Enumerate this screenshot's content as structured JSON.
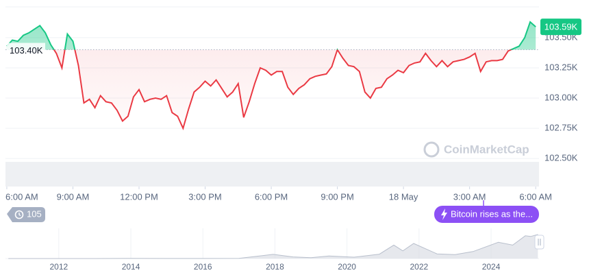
{
  "chart_data": [
    {
      "type": "line",
      "x": [
        0,
        0.25,
        0.5,
        0.75,
        1,
        1.25,
        1.5,
        1.75,
        2,
        2.25,
        2.5,
        2.75,
        3,
        3.25,
        3.5,
        3.75,
        4,
        4.25,
        4.5,
        4.75,
        5,
        5.25,
        5.5,
        5.75,
        6,
        6.25,
        6.5,
        6.75,
        7,
        7.25,
        7.5,
        7.75,
        8,
        8.25,
        8.5,
        8.75,
        9,
        9.25,
        9.5,
        9.75,
        10,
        10.25,
        10.5,
        10.75,
        11,
        11.25,
        11.5,
        11.75,
        12,
        12.25,
        12.5,
        12.75,
        13,
        13.25,
        13.5,
        13.75,
        14,
        14.25,
        14.5,
        14.75,
        15,
        15.25,
        15.5,
        15.75,
        16,
        16.25,
        16.5,
        16.75,
        17,
        17.25,
        17.5,
        17.75,
        18,
        18.25,
        18.5,
        18.75,
        19,
        19.25,
        19.5,
        19.75,
        20,
        20.25,
        20.5,
        20.75,
        21,
        21.25,
        21.5,
        21.75,
        22,
        22.25,
        22.5,
        22.75,
        23,
        23.25,
        23.5,
        23.75,
        24
      ],
      "series": [
        {
          "values": [
            103.43,
            103.48,
            103.47,
            103.52,
            103.54,
            103.57,
            103.6,
            103.54,
            103.44,
            103.37,
            103.25,
            103.53,
            103.47,
            103.27,
            102.96,
            102.99,
            102.92,
            103.02,
            102.97,
            102.96,
            102.9,
            102.81,
            102.85,
            103.01,
            103.07,
            102.97,
            102.99,
            103.0,
            102.99,
            103.02,
            102.88,
            102.85,
            102.75,
            102.91,
            103.05,
            103.09,
            103.14,
            103.1,
            103.15,
            103.08,
            103.01,
            103.05,
            103.12,
            102.84,
            102.97,
            103.12,
            103.25,
            103.23,
            103.19,
            103.22,
            103.22,
            103.09,
            103.03,
            103.08,
            103.11,
            103.16,
            103.18,
            103.19,
            103.2,
            103.26,
            103.4,
            103.33,
            103.27,
            103.26,
            103.22,
            103.05,
            103.0,
            103.08,
            103.09,
            103.16,
            103.19,
            103.23,
            103.21,
            103.27,
            103.29,
            103.3,
            103.37,
            103.31,
            103.26,
            103.31,
            103.26,
            103.3,
            103.31,
            103.32,
            103.34,
            103.37,
            103.22,
            103.3,
            103.31,
            103.31,
            103.32,
            103.39,
            103.41,
            103.43,
            103.5,
            103.63,
            103.59
          ]
        }
      ],
      "up_color": "#16c784",
      "down_color": "#ea3943",
      "baseline": {
        "value": 103.4,
        "label": "103.40K"
      },
      "current": {
        "value": 103.59,
        "label": "103.59K"
      },
      "xlim": [
        -0.06,
        24.15
      ],
      "xticks": [
        {
          "value": 0,
          "label": "6:00 AM"
        },
        {
          "value": 3,
          "label": "9:00 AM"
        },
        {
          "value": 6,
          "label": "12:00 PM"
        },
        {
          "value": 9,
          "label": "3:00 PM"
        },
        {
          "value": 12,
          "label": "6:00 PM"
        },
        {
          "value": 15,
          "label": "9:00 PM"
        },
        {
          "value": 18,
          "label": "18 May"
        },
        {
          "value": 21,
          "label": "3:00 AM"
        },
        {
          "value": 24,
          "label": "6:00 AM"
        }
      ],
      "ylim": [
        102.268,
        103.755
      ],
      "yticks": [
        {
          "value": 102.5,
          "label": "102.50K"
        },
        {
          "value": 102.75,
          "label": "102.75K"
        },
        {
          "value": 103.0,
          "label": "103.00K"
        },
        {
          "value": 103.25,
          "label": "103.25K"
        },
        {
          "value": 103.5,
          "label": "103.50K"
        }
      ],
      "grid": true,
      "events_badge": "105",
      "news_badge": "Bitcoin rises as the...",
      "watermark": "CoinMarketCap"
    },
    {
      "type": "area",
      "x": [
        2010.6,
        2012,
        2013,
        2013.9,
        2015,
        2016,
        2017,
        2017.95,
        2018.5,
        2019,
        2019.5,
        2020.2,
        2020.9,
        2021.3,
        2021.55,
        2021.85,
        2022.5,
        2023,
        2023.5,
        2024.2,
        2024.6,
        2024.95,
        2025.1,
        2025.3
      ],
      "values": [
        0,
        0,
        0.1,
        1,
        0.3,
        0.4,
        1,
        18,
        7,
        3.5,
        11,
        6,
        19,
        58,
        33,
        65,
        20,
        17,
        30,
        70,
        58,
        98,
        95,
        103.6
      ],
      "color": "#d5d9e1",
      "xlim": [
        2010.52,
        2025.33
      ],
      "xticks": [
        2012,
        2014,
        2016,
        2018,
        2020,
        2022,
        2024
      ],
      "ylim": [
        0,
        130
      ]
    }
  ]
}
